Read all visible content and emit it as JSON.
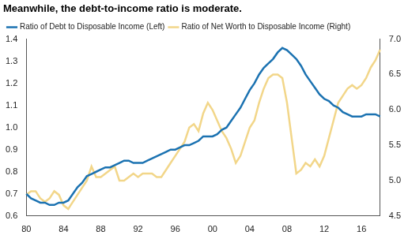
{
  "chart_data": {
    "type": "line",
    "title": "Meanwhile, the debt-to-income ratio is moderate.",
    "categories": [
      "80",
      null,
      null,
      null,
      null,
      null,
      null,
      null,
      "84",
      null,
      null,
      null,
      null,
      null,
      null,
      null,
      "88",
      null,
      null,
      null,
      null,
      null,
      null,
      null,
      "92",
      null,
      null,
      null,
      null,
      null,
      null,
      null,
      "96",
      null,
      null,
      null,
      null,
      null,
      null,
      null,
      "00",
      null,
      null,
      null,
      null,
      null,
      null,
      null,
      "04",
      null,
      null,
      null,
      null,
      null,
      null,
      null,
      "08",
      null,
      null,
      null,
      null,
      null,
      null,
      null,
      "12",
      null,
      null,
      null,
      null,
      null,
      null,
      null,
      "16",
      null,
      null,
      null,
      null
    ],
    "series": [
      {
        "name": "Ratio of Debt to Disposable Income (Left)",
        "color": "#1b72b1",
        "values": [
          0.7,
          0.68,
          0.67,
          0.66,
          0.66,
          0.65,
          0.65,
          0.66,
          0.66,
          0.67,
          0.7,
          0.73,
          0.75,
          0.78,
          0.79,
          0.8,
          0.81,
          0.82,
          0.82,
          0.83,
          0.84,
          0.85,
          0.85,
          0.84,
          0.84,
          0.84,
          0.85,
          0.86,
          0.87,
          0.88,
          0.89,
          0.9,
          0.9,
          0.91,
          0.92,
          0.92,
          0.93,
          0.94,
          0.96,
          0.96,
          0.96,
          0.97,
          0.99,
          1.0,
          1.03,
          1.06,
          1.09,
          1.13,
          1.17,
          1.2,
          1.24,
          1.27,
          1.29,
          1.31,
          1.34,
          1.36,
          1.35,
          1.33,
          1.31,
          1.28,
          1.24,
          1.21,
          1.18,
          1.15,
          1.13,
          1.12,
          1.1,
          1.09,
          1.07,
          1.06,
          1.05,
          1.05,
          1.05,
          1.06,
          1.06,
          1.06,
          1.05
        ]
      },
      {
        "name": "Ratio of Net Worth to Disposable Income (Right)",
        "color": "#f2d689",
        "axis": "y2",
        "values": [
          4.8,
          4.85,
          4.85,
          4.75,
          4.7,
          4.75,
          4.85,
          4.8,
          4.65,
          4.6,
          4.7,
          4.8,
          4.9,
          5.0,
          5.2,
          5.05,
          5.05,
          5.1,
          5.15,
          5.2,
          5.0,
          5.0,
          5.05,
          5.1,
          5.05,
          5.1,
          5.1,
          5.1,
          5.05,
          5.05,
          5.15,
          5.25,
          5.35,
          5.45,
          5.55,
          5.75,
          5.8,
          5.7,
          5.95,
          6.1,
          6.0,
          5.85,
          5.7,
          5.6,
          5.45,
          5.25,
          5.35,
          5.55,
          5.75,
          5.85,
          6.1,
          6.3,
          6.45,
          6.5,
          6.5,
          6.45,
          6.1,
          5.6,
          5.1,
          5.15,
          5.25,
          5.2,
          5.3,
          5.2,
          5.35,
          5.6,
          5.85,
          6.1,
          6.2,
          6.3,
          6.35,
          6.3,
          6.35,
          6.45,
          6.6,
          6.7,
          6.85
        ]
      }
    ],
    "ylim": [
      0.6,
      1.4
    ],
    "yticks": [
      0.6,
      0.7,
      0.8,
      0.9,
      {
        "value": 1,
        "label": "1.0"
      },
      1.1,
      1.2,
      1.3,
      1.4
    ],
    "y2lim": [
      4.5,
      7.0
    ],
    "y2ticks": [
      4.5,
      {
        "value": 5,
        "label": "5.0"
      },
      5.5,
      {
        "value": 6,
        "label": "6.0"
      },
      6.5,
      {
        "value": 7,
        "label": "7.0"
      }
    ],
    "grid": false,
    "legend": "top left"
  }
}
